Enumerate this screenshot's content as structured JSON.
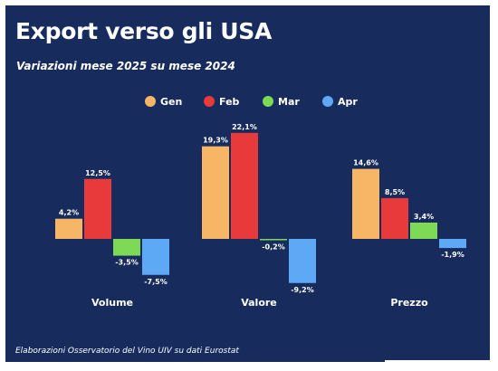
{
  "title": "Export verso gli USA",
  "subtitle": "Variazioni mese 2025 su mese 2024",
  "footer": "Elaborazioni Osservatorio del Vino UIV su dati Eurostat",
  "chart_data": {
    "type": "bar",
    "title": "Export verso gli USA",
    "subtitle": "Variazioni mese 2025 su mese 2024",
    "categories": [
      "Volume",
      "Valore",
      "Prezzo"
    ],
    "series": [
      {
        "name": "Gen",
        "color": "#f7b666",
        "values": [
          4.2,
          19.3,
          14.6
        ],
        "labels": [
          "4,2%",
          "19,3%",
          "14,6%"
        ]
      },
      {
        "name": "Feb",
        "color": "#e8393b",
        "values": [
          12.5,
          22.1,
          8.5
        ],
        "labels": [
          "12,5%",
          "22,1%",
          "8,5%"
        ]
      },
      {
        "name": "Mar",
        "color": "#7ed957",
        "values": [
          -3.5,
          -0.2,
          3.4
        ],
        "labels": [
          "-3,5%",
          "-0,2%",
          "3,4%"
        ]
      },
      {
        "name": "Apr",
        "color": "#5ea9f5",
        "values": [
          -7.5,
          -9.2,
          -1.9
        ],
        "labels": [
          "-7,5%",
          "-9,2%",
          "-1,9%"
        ]
      }
    ],
    "legend": "top-center",
    "grid": false,
    "axis_labels_shown": false
  }
}
